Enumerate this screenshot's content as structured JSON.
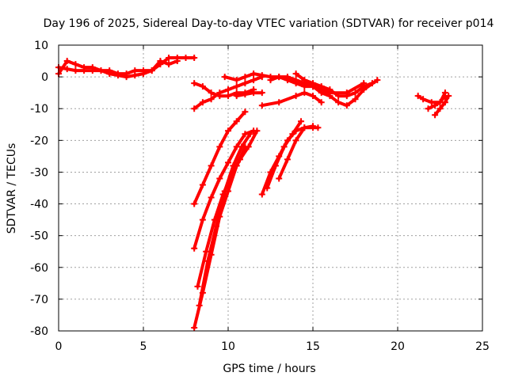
{
  "chart_data": {
    "type": "scatter",
    "title": "Day 196 of 2025, Sidereal Day-to-day VTEC variation (SDTVAR) for receiver p014",
    "xlabel": "GPS time / hours",
    "ylabel": "SDTVAR / TECUs",
    "xlim": [
      0,
      25
    ],
    "ylim": [
      -80,
      10
    ],
    "xticks": [
      0,
      5,
      10,
      15,
      20,
      25
    ],
    "yticks": [
      10,
      0,
      -10,
      -20,
      -30,
      -40,
      -50,
      -60,
      -70,
      -80
    ],
    "grid": true,
    "legend": "none",
    "marker": "plus",
    "color": "#ff0000",
    "series": [
      {
        "points": [
          [
            0,
            1
          ],
          [
            0.5,
            5
          ],
          [
            1,
            4
          ],
          [
            1.5,
            3
          ],
          [
            2,
            3
          ],
          [
            2.5,
            2
          ],
          [
            3,
            2
          ],
          [
            3.5,
            1
          ],
          [
            4,
            1
          ],
          [
            4.5,
            2
          ],
          [
            5,
            2
          ],
          [
            5.5,
            2
          ],
          [
            6,
            4
          ],
          [
            6.5,
            6
          ],
          [
            7,
            6
          ],
          [
            7.5,
            6
          ],
          [
            8,
            6
          ]
        ]
      },
      {
        "points": [
          [
            0,
            3
          ],
          [
            0.5,
            2.5
          ],
          [
            1,
            2
          ],
          [
            1.5,
            2
          ],
          [
            2,
            2
          ],
          [
            2.5,
            2
          ],
          [
            3,
            1
          ],
          [
            3.5,
            0.5
          ],
          [
            4,
            0
          ],
          [
            4.5,
            0.5
          ],
          [
            5,
            1
          ],
          [
            5.5,
            2
          ],
          [
            6,
            5
          ],
          [
            6.5,
            4
          ],
          [
            7,
            5
          ]
        ]
      },
      {
        "points": [
          [
            8,
            -2
          ],
          [
            8.5,
            -3
          ],
          [
            9,
            -5
          ],
          [
            9.5,
            -6
          ],
          [
            10,
            -6
          ],
          [
            10.5,
            -5
          ],
          [
            11,
            -5
          ],
          [
            11.5,
            -4
          ]
        ]
      },
      {
        "points": [
          [
            8,
            -10
          ],
          [
            8.5,
            -8
          ],
          [
            9,
            -7
          ],
          [
            9.5,
            -5
          ],
          [
            10,
            -4
          ],
          [
            10.5,
            -3
          ],
          [
            11,
            -2
          ],
          [
            11.5,
            -1
          ],
          [
            12,
            0
          ]
        ]
      },
      {
        "points": [
          [
            9.8,
            0
          ],
          [
            10.5,
            -1
          ],
          [
            11,
            0
          ],
          [
            11.5,
            1
          ],
          [
            12,
            0.5
          ],
          [
            12.5,
            0
          ],
          [
            13,
            0
          ],
          [
            13.5,
            0
          ],
          [
            14,
            -1
          ],
          [
            14.5,
            -2
          ],
          [
            15,
            -3
          ],
          [
            15.5,
            -4
          ],
          [
            16,
            -5
          ],
          [
            17,
            -5
          ],
          [
            18,
            -2
          ]
        ]
      },
      {
        "points": [
          [
            10.5,
            -6
          ],
          [
            11,
            -5.5
          ],
          [
            11.5,
            -5
          ],
          [
            12,
            -5
          ]
        ]
      },
      {
        "points": [
          [
            12,
            -9
          ],
          [
            13,
            -8
          ],
          [
            14,
            -6
          ],
          [
            14.5,
            -5
          ],
          [
            15,
            -6
          ],
          [
            15.5,
            -8
          ]
        ]
      },
      {
        "points": [
          [
            12.5,
            -1
          ],
          [
            13,
            0
          ],
          [
            13.5,
            -1
          ],
          [
            14,
            -2
          ],
          [
            14.5,
            -3
          ],
          [
            15,
            -3
          ],
          [
            15.5,
            -5
          ],
          [
            16,
            -6
          ],
          [
            16.5,
            -8
          ],
          [
            17,
            -9
          ],
          [
            17.5,
            -7
          ],
          [
            18,
            -4
          ],
          [
            18.8,
            -1
          ]
        ]
      },
      {
        "points": [
          [
            14,
            1
          ],
          [
            14.5,
            -1
          ],
          [
            15,
            -2
          ],
          [
            15.5,
            -3
          ],
          [
            16,
            -4
          ],
          [
            16.5,
            -6
          ],
          [
            17,
            -6
          ],
          [
            17.5,
            -5
          ],
          [
            18,
            -3
          ],
          [
            18.5,
            -2
          ]
        ]
      },
      {
        "points": [
          [
            21.2,
            -6
          ],
          [
            21.5,
            -7
          ],
          [
            22,
            -8
          ],
          [
            22.5,
            -8
          ],
          [
            22.8,
            -6
          ]
        ]
      },
      {
        "points": [
          [
            21.8,
            -10
          ],
          [
            22.2,
            -9
          ],
          [
            22.5,
            -8
          ],
          [
            22.8,
            -5
          ]
        ]
      },
      {
        "points": [
          [
            22.2,
            -12
          ],
          [
            22.5,
            -10
          ],
          [
            22.8,
            -8
          ],
          [
            23,
            -6
          ]
        ]
      },
      {
        "points": [
          [
            8,
            -40
          ],
          [
            8.5,
            -34
          ],
          [
            9,
            -28
          ],
          [
            9.5,
            -22
          ],
          [
            10,
            -17
          ],
          [
            10.5,
            -14
          ],
          [
            11,
            -11
          ]
        ]
      },
      {
        "points": [
          [
            8,
            -54
          ],
          [
            8.5,
            -45
          ],
          [
            9,
            -38
          ],
          [
            9.5,
            -32
          ],
          [
            10,
            -27
          ],
          [
            10.5,
            -22
          ],
          [
            11,
            -18
          ],
          [
            11.5,
            -17
          ]
        ]
      },
      {
        "points": [
          [
            8.2,
            -66
          ],
          [
            8.7,
            -55
          ],
          [
            9.2,
            -45
          ],
          [
            9.7,
            -37
          ],
          [
            10.2,
            -31
          ],
          [
            10.7,
            -26
          ],
          [
            11.2,
            -22
          ],
          [
            11.7,
            -17
          ]
        ]
      },
      {
        "points": [
          [
            8.3,
            -72
          ],
          [
            8.8,
            -58
          ],
          [
            9.3,
            -47
          ],
          [
            9.8,
            -36
          ],
          [
            10.3,
            -28
          ],
          [
            10.8,
            -22
          ],
          [
            11.3,
            -18
          ]
        ]
      },
      {
        "points": [
          [
            8.0,
            -79
          ],
          [
            8.5,
            -68
          ],
          [
            9.0,
            -56
          ],
          [
            9.5,
            -44
          ],
          [
            10.0,
            -36
          ],
          [
            10.5,
            -28
          ],
          [
            11.0,
            -22
          ]
        ]
      },
      {
        "points": [
          [
            12,
            -37
          ],
          [
            12.5,
            -30
          ],
          [
            13,
            -25
          ],
          [
            13.5,
            -20
          ],
          [
            14,
            -17
          ],
          [
            14.5,
            -16
          ],
          [
            15,
            -16
          ],
          [
            15.3,
            -16
          ]
        ]
      },
      {
        "points": [
          [
            12.3,
            -35
          ],
          [
            12.8,
            -28
          ],
          [
            13.3,
            -22
          ],
          [
            13.8,
            -18
          ],
          [
            14.3,
            -14
          ]
        ]
      },
      {
        "points": [
          [
            13,
            -32
          ],
          [
            13.5,
            -26
          ],
          [
            14,
            -20
          ],
          [
            14.5,
            -16
          ],
          [
            15,
            -15.5
          ]
        ]
      }
    ]
  }
}
